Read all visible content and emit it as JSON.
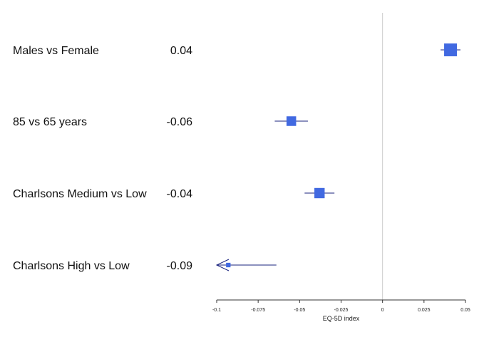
{
  "chart_data": {
    "type": "forest",
    "xlabel": "EQ-5D index",
    "xlim": [
      -0.1,
      0.05
    ],
    "xticks": [
      -0.1,
      -0.075,
      -0.05,
      -0.025,
      0,
      0.025,
      0.05
    ],
    "xtick_labels": [
      "-0.1",
      "-0.075",
      "-0.05",
      "-0.025",
      "0",
      "0.025",
      "0.05"
    ],
    "reference_line": 0,
    "rows": [
      {
        "label": "Males vs Female",
        "estimate_label": "0.04",
        "estimate": 0.041,
        "ci_low": 0.035,
        "ci_high": 0.047,
        "weight": 1.0,
        "arrow_left": false
      },
      {
        "label": "85 vs 65 years",
        "estimate_label": "-0.06",
        "estimate": -0.055,
        "ci_low": -0.065,
        "ci_high": -0.045,
        "weight": 0.75,
        "arrow_left": false
      },
      {
        "label": "Charlsons Medium vs Low",
        "estimate_label": "-0.04",
        "estimate": -0.038,
        "ci_low": -0.047,
        "ci_high": -0.029,
        "weight": 0.8,
        "arrow_left": false
      },
      {
        "label": "Charlsons High vs Low",
        "estimate_label": "-0.09",
        "estimate": -0.093,
        "ci_low": -0.1,
        "ci_high": -0.064,
        "weight": 0.35,
        "arrow_left": true
      }
    ]
  },
  "colors": {
    "marker": "#4169E1",
    "ci_line": "#1a237e",
    "reference_line": "#cccccc",
    "axis": "#333333"
  }
}
